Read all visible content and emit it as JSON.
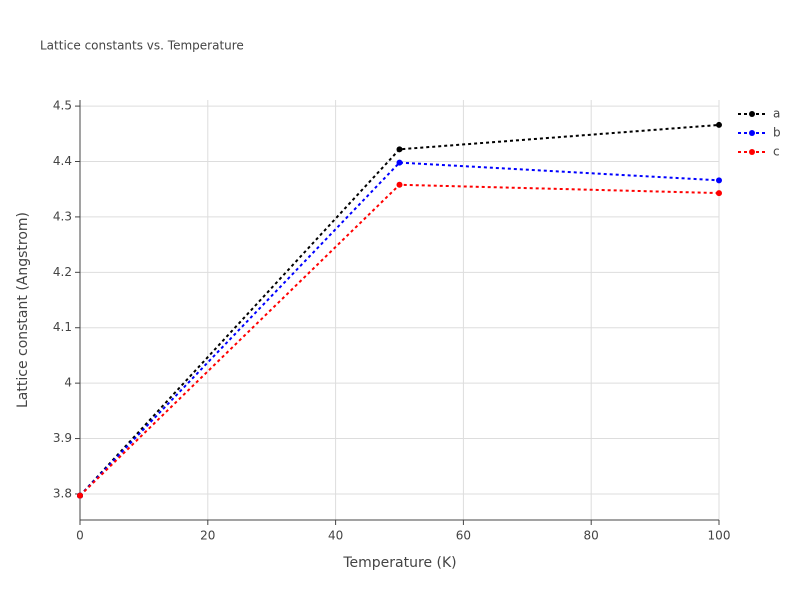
{
  "chart_data": {
    "type": "line",
    "title": "Lattice constants vs. Temperature",
    "x_label": "Temperature (K)",
    "y_label": "Lattice constant (Angstrom)",
    "x": [
      0,
      50,
      100
    ],
    "series": [
      {
        "name": "a",
        "color": "#000000",
        "values": [
          3.797,
          4.422,
          4.466
        ]
      },
      {
        "name": "b",
        "color": "#0000ff",
        "values": [
          3.797,
          4.398,
          4.366
        ]
      },
      {
        "name": "c",
        "color": "#ff0000",
        "values": [
          3.797,
          4.358,
          4.343
        ]
      }
    ],
    "xlim": [
      0,
      100
    ],
    "xticks": [
      0,
      20,
      40,
      60,
      80,
      100
    ],
    "ylim": [
      3.753,
      4.511
    ],
    "yticks": [
      3.8,
      3.9,
      4,
      4.1,
      4.2,
      4.3,
      4.4,
      4.5
    ],
    "grid": true,
    "legend": "top-right",
    "line_style": "dotted"
  }
}
